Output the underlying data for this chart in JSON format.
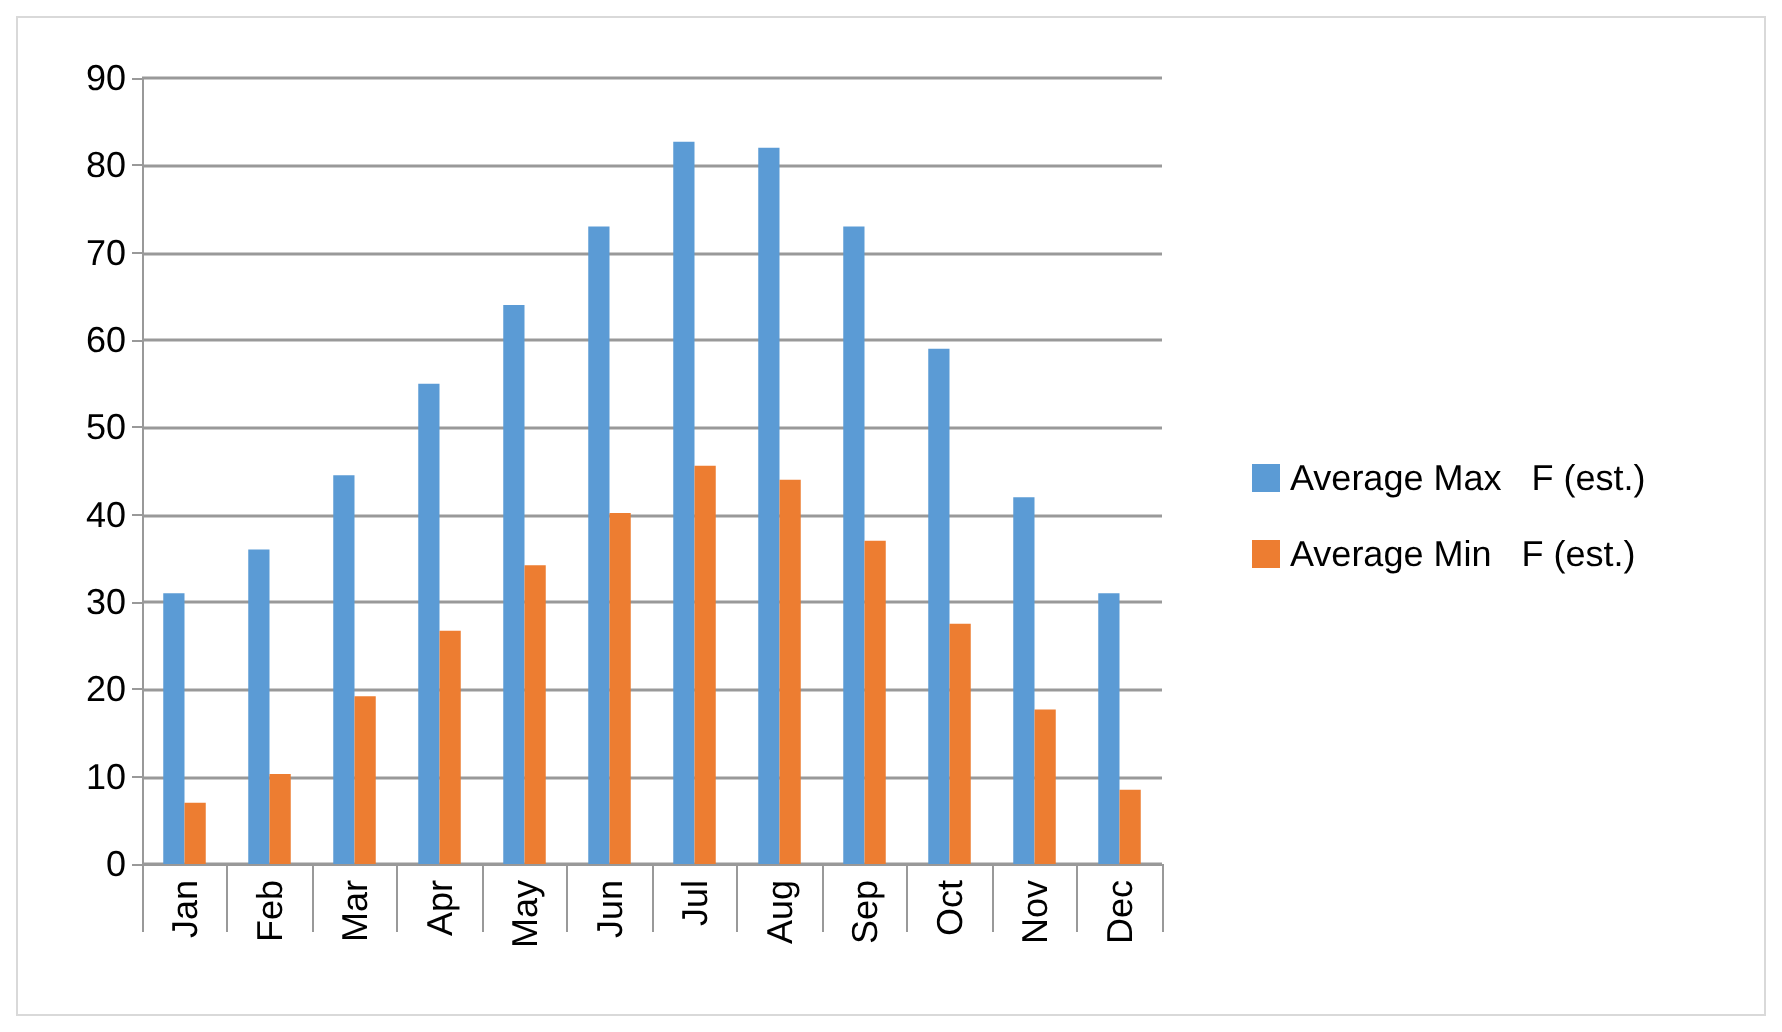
{
  "chart_data": {
    "type": "bar",
    "categories": [
      "Jan",
      "Feb",
      "Mar",
      "Apr",
      "May",
      "Jun",
      "Jul",
      "Aug",
      "Sep",
      "Oct",
      "Nov",
      "Dec"
    ],
    "series": [
      {
        "name": "Average Max   F (est.)",
        "color": "#5b9bd5",
        "values": [
          31,
          36,
          44.5,
          55,
          64,
          73,
          82.7,
          82,
          73,
          59,
          42,
          31
        ]
      },
      {
        "name": "Average Min   F (est.)",
        "color": "#ed7d31",
        "values": [
          7,
          10.3,
          19.2,
          26.7,
          34.2,
          40.2,
          45.6,
          44,
          37,
          27.5,
          17.7,
          8.5
        ]
      }
    ],
    "ylim": [
      0,
      90
    ],
    "yticks": [
      0,
      10,
      20,
      30,
      40,
      50,
      60,
      70,
      80,
      90
    ],
    "grid": "y",
    "legend": "right"
  }
}
